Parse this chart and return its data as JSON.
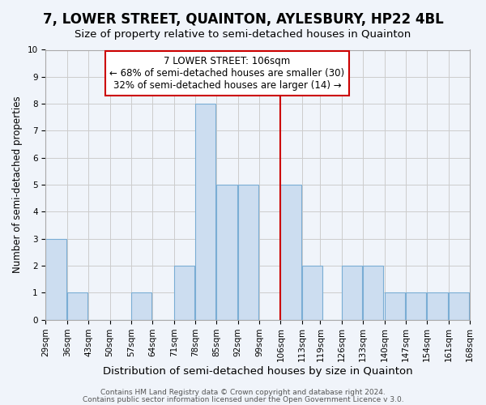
{
  "title": "7, LOWER STREET, QUAINTON, AYLESBURY, HP22 4BL",
  "subtitle": "Size of property relative to semi-detached houses in Quainton",
  "xlabel": "Distribution of semi-detached houses by size in Quainton",
  "ylabel": "Number of semi-detached properties",
  "bins": [
    29,
    36,
    43,
    50,
    57,
    64,
    71,
    78,
    85,
    92,
    99,
    106,
    113,
    119,
    126,
    133,
    140,
    147,
    154,
    161,
    168
  ],
  "counts": [
    3,
    1,
    0,
    0,
    1,
    0,
    2,
    8,
    5,
    5,
    0,
    5,
    2,
    0,
    2,
    2,
    1,
    1,
    1,
    1
  ],
  "tick_labels": [
    "29sqm",
    "36sqm",
    "43sqm",
    "50sqm",
    "57sqm",
    "64sqm",
    "71sqm",
    "78sqm",
    "85sqm",
    "92sqm",
    "99sqm",
    "106sqm",
    "113sqm",
    "119sqm",
    "126sqm",
    "133sqm",
    "140sqm",
    "147sqm",
    "154sqm",
    "161sqm",
    "168sqm"
  ],
  "bar_color": "#ccddf0",
  "bar_edge_color": "#7aadd4",
  "subject_value": 106,
  "subject_label": "7 LOWER STREET: 106sqm",
  "annotation_line1": "← 68% of semi-detached houses are smaller (30)",
  "annotation_line2": "32% of semi-detached houses are larger (14) →",
  "vline_color": "#cc0000",
  "annotation_box_color": "#ffffff",
  "annotation_box_edge": "#cc0000",
  "ylim": [
    0,
    10
  ],
  "yticks": [
    0,
    1,
    2,
    3,
    4,
    5,
    6,
    7,
    8,
    9,
    10
  ],
  "grid_color": "#cccccc",
  "bg_color": "#f0f4fa",
  "footer_line1": "Contains HM Land Registry data © Crown copyright and database right 2024.",
  "footer_line2": "Contains public sector information licensed under the Open Government Licence v 3.0.",
  "title_fontsize": 12,
  "subtitle_fontsize": 9.5,
  "xlabel_fontsize": 9.5,
  "ylabel_fontsize": 8.5,
  "tick_fontsize": 7.5,
  "annotation_fontsize": 8.5,
  "footer_fontsize": 6.5
}
